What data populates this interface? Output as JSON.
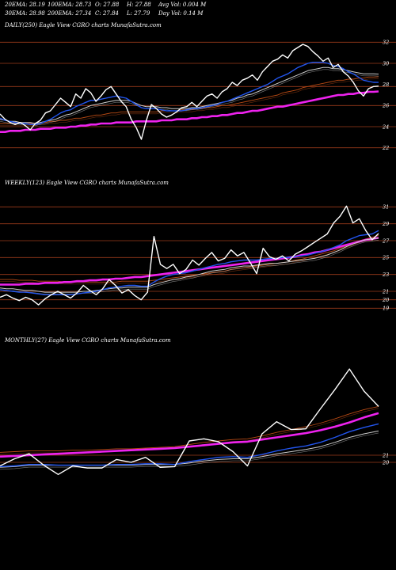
{
  "header": {
    "stats": [
      "20EMA: 28.19",
      "100EMA: 28.73",
      "O: 27.88",
      "H: 27.88",
      "Avg Vol: 0.004 M",
      "30EMA: 28.98",
      "200EMA: 27.34",
      "C: 27.84",
      "L: 27.79",
      "Day Vol: 0.14  M"
    ]
  },
  "colors": {
    "background": "#000000",
    "price": "#ffffff",
    "ema20": "#2255ee",
    "ema30": "#cccccc",
    "ema100": "#b84a14",
    "ema200": "#ee22ee",
    "grid_line": "#9a3a1a"
  },
  "chart_data": [
    {
      "type": "line",
      "title": "DAILY(250) Eagle  View  CGRO charts MunafaSutra.com",
      "ylim": [
        21,
        33
      ],
      "yticks": [
        32,
        30,
        28,
        26,
        24,
        22
      ],
      "hlines": [
        32,
        30,
        27.8,
        26,
        24,
        22
      ],
      "series": [
        {
          "key": "price",
          "values": [
            25.2,
            24.7,
            24.4,
            24.2,
            24.4,
            24.1,
            23.7,
            24.3,
            24.6,
            25.3,
            25.5,
            26.1,
            26.7,
            26.3,
            25.9,
            27.1,
            26.7,
            27.6,
            27.2,
            26.4,
            26.9,
            27.5,
            27.8,
            27.1,
            26.4,
            25.9,
            24.7,
            23.9,
            22.8,
            24.6,
            26.1,
            25.7,
            25.2,
            24.9,
            25.1,
            25.4,
            25.8,
            25.9,
            26.3,
            25.9,
            26.4,
            26.9,
            27.1,
            26.7,
            27.3,
            27.6,
            28.2,
            27.9,
            28.4,
            28.6,
            28.9,
            28.4,
            29.2,
            29.7,
            30.2,
            30.4,
            30.8,
            30.5,
            31.2,
            31.5,
            31.8,
            31.6,
            31.1,
            30.7,
            30.2,
            30.5,
            29.6,
            29.9,
            29.2,
            28.8,
            28.2,
            27.4,
            26.9,
            27.6,
            27.8,
            27.84
          ]
        },
        {
          "key": "ema20",
          "values": [
            24.8,
            24.6,
            24.5,
            24.4,
            24.3,
            24.3,
            24.2,
            24.2,
            24.3,
            24.5,
            24.7,
            25.0,
            25.3,
            25.5,
            25.6,
            25.9,
            26.1,
            26.3,
            26.5,
            26.5,
            26.6,
            26.7,
            26.8,
            26.9,
            26.8,
            26.7,
            26.4,
            26.1,
            25.8,
            25.7,
            25.7,
            25.7,
            25.6,
            25.5,
            25.5,
            25.5,
            25.5,
            25.6,
            25.7,
            25.7,
            25.8,
            25.9,
            26.0,
            26.1,
            26.3,
            26.4,
            26.6,
            26.8,
            27.0,
            27.2,
            27.4,
            27.6,
            27.8,
            28.0,
            28.3,
            28.6,
            28.8,
            29.0,
            29.3,
            29.6,
            29.8,
            30.0,
            30.1,
            30.1,
            30.1,
            30.0,
            29.8,
            29.7,
            29.5,
            29.2,
            29.0,
            28.7,
            28.4,
            28.3,
            28.2,
            28.19
          ]
        },
        {
          "key": "ema30",
          "values": [
            24.7,
            24.6,
            24.5,
            24.5,
            24.4,
            24.4,
            24.4,
            24.3,
            24.4,
            24.5,
            24.6,
            24.7,
            24.9,
            25.1,
            25.2,
            25.4,
            25.6,
            25.8,
            26.0,
            26.1,
            26.2,
            26.3,
            26.4,
            26.5,
            26.5,
            26.5,
            26.4,
            26.2,
            26.0,
            25.9,
            25.9,
            25.9,
            25.8,
            25.8,
            25.7,
            25.7,
            25.7,
            25.7,
            25.8,
            25.8,
            25.9,
            26.0,
            26.1,
            26.2,
            26.3,
            26.4,
            26.5,
            26.7,
            26.8,
            27.0,
            27.1,
            27.3,
            27.5,
            27.7,
            27.9,
            28.1,
            28.3,
            28.5,
            28.7,
            28.9,
            29.1,
            29.3,
            29.4,
            29.5,
            29.6,
            29.6,
            29.5,
            29.5,
            29.4,
            29.3,
            29.2,
            29.1,
            29.0,
            29.0,
            29.0,
            28.98
          ]
        },
        {
          "key": "ema100",
          "values": [
            24.3,
            24.3,
            24.3,
            24.3,
            24.3,
            24.3,
            24.3,
            24.3,
            24.4,
            24.4,
            24.5,
            24.5,
            24.6,
            24.6,
            24.7,
            24.8,
            24.8,
            24.9,
            25.0,
            25.1,
            25.1,
            25.2,
            25.3,
            25.3,
            25.4,
            25.4,
            25.4,
            25.4,
            25.4,
            25.4,
            25.4,
            25.4,
            25.5,
            25.5,
            25.5,
            25.5,
            25.6,
            25.6,
            25.6,
            25.7,
            25.7,
            25.8,
            25.8,
            25.9,
            26.0,
            26.0,
            26.1,
            26.2,
            26.3,
            26.4,
            26.5,
            26.6,
            26.7,
            26.8,
            26.9,
            27.0,
            27.2,
            27.3,
            27.4,
            27.5,
            27.7,
            27.8,
            27.9,
            28.0,
            28.1,
            28.2,
            28.3,
            28.4,
            28.4,
            28.5,
            28.5,
            28.6,
            28.6,
            28.7,
            28.7,
            28.73
          ]
        },
        {
          "key": "ema200",
          "values": [
            23.5,
            23.5,
            23.6,
            23.6,
            23.6,
            23.7,
            23.7,
            23.7,
            23.8,
            23.8,
            23.8,
            23.9,
            23.9,
            23.9,
            24.0,
            24.0,
            24.1,
            24.1,
            24.2,
            24.2,
            24.3,
            24.3,
            24.3,
            24.4,
            24.4,
            24.4,
            24.4,
            24.5,
            24.5,
            24.5,
            24.5,
            24.5,
            24.6,
            24.6,
            24.6,
            24.7,
            24.7,
            24.7,
            24.8,
            24.8,
            24.9,
            24.9,
            25.0,
            25.0,
            25.1,
            25.1,
            25.2,
            25.3,
            25.3,
            25.4,
            25.5,
            25.5,
            25.6,
            25.7,
            25.8,
            25.9,
            25.9,
            26.0,
            26.1,
            26.2,
            26.3,
            26.4,
            26.5,
            26.6,
            26.7,
            26.8,
            26.9,
            27.0,
            27.0,
            27.1,
            27.1,
            27.2,
            27.2,
            27.3,
            27.3,
            27.34
          ]
        }
      ]
    },
    {
      "type": "line",
      "title": "WEEKLY(123) Eagle  View  CGRO charts MunafaSutra.com",
      "ylim": [
        18,
        33
      ],
      "yticks": [
        31,
        29,
        27,
        25,
        23,
        21,
        20,
        19
      ],
      "hlines": [
        31,
        29,
        27,
        25,
        23,
        21,
        20,
        19
      ],
      "series": [
        {
          "key": "price",
          "values": [
            20.3,
            20.6,
            20.2,
            19.9,
            20.3,
            20.0,
            19.4,
            20.1,
            20.6,
            21.0,
            20.6,
            20.2,
            20.8,
            21.7,
            21.1,
            20.6,
            21.3,
            22.4,
            21.7,
            20.8,
            21.2,
            20.5,
            20.0,
            20.9,
            27.5,
            24.2,
            23.7,
            24.2,
            23.1,
            23.6,
            24.7,
            24.1,
            24.9,
            25.6,
            24.6,
            24.9,
            25.9,
            25.2,
            25.6,
            24.4,
            23.1,
            26.1,
            25.1,
            24.8,
            25.2,
            24.6,
            25.4,
            25.8,
            26.3,
            26.8,
            27.3,
            27.8,
            29.1,
            29.9,
            31.1,
            29.1,
            29.6,
            28.2,
            27.1,
            27.84
          ]
        },
        {
          "key": "ema20",
          "values": [
            21.2,
            21.1,
            21.0,
            20.9,
            20.9,
            20.8,
            20.7,
            20.6,
            20.6,
            20.6,
            20.6,
            20.6,
            20.7,
            20.8,
            20.9,
            21.0,
            21.2,
            21.4,
            21.5,
            21.6,
            21.7,
            21.7,
            21.6,
            21.6,
            22.1,
            22.5,
            22.8,
            23.0,
            23.1,
            23.2,
            23.4,
            23.6,
            23.8,
            24.0,
            24.2,
            24.3,
            24.5,
            24.6,
            24.7,
            24.7,
            24.7,
            24.8,
            24.9,
            24.9,
            25.0,
            25.0,
            25.1,
            25.2,
            25.3,
            25.5,
            25.7,
            25.9,
            26.2,
            26.5,
            27.0,
            27.3,
            27.6,
            27.7,
            27.8,
            28.19
          ]
        },
        {
          "key": "ema30",
          "values": [
            21.4,
            21.3,
            21.3,
            21.2,
            21.1,
            21.1,
            21.0,
            20.9,
            20.9,
            20.9,
            20.9,
            20.9,
            20.9,
            21.0,
            21.0,
            21.1,
            21.2,
            21.3,
            21.4,
            21.4,
            21.5,
            21.5,
            21.5,
            21.5,
            21.8,
            22.0,
            22.2,
            22.4,
            22.5,
            22.7,
            22.8,
            23.0,
            23.2,
            23.4,
            23.5,
            23.6,
            23.8,
            23.9,
            24.0,
            24.0,
            24.1,
            24.2,
            24.3,
            24.3,
            24.4,
            24.5,
            24.6,
            24.7,
            24.8,
            24.9,
            25.1,
            25.3,
            25.6,
            25.9,
            26.3,
            26.6,
            26.9,
            27.1,
            27.2,
            27.3
          ]
        },
        {
          "key": "ema100",
          "values": [
            22.4,
            22.4,
            22.4,
            22.3,
            22.3,
            22.3,
            22.2,
            22.2,
            22.2,
            22.2,
            22.1,
            22.1,
            22.1,
            22.1,
            22.1,
            22.1,
            22.1,
            22.1,
            22.1,
            22.2,
            22.2,
            22.2,
            22.2,
            22.2,
            22.3,
            22.4,
            22.5,
            22.6,
            22.7,
            22.8,
            22.9,
            23.0,
            23.1,
            23.2,
            23.3,
            23.4,
            23.6,
            23.7,
            23.8,
            23.9,
            24.0,
            24.1,
            24.2,
            24.3,
            24.4,
            24.5,
            24.7,
            24.8,
            25.0,
            25.2,
            25.4,
            25.6,
            25.8,
            26.1,
            26.4,
            26.7,
            27.0,
            27.2,
            27.4,
            27.6
          ]
        },
        {
          "key": "ema200",
          "values": [
            21.8,
            21.8,
            21.8,
            21.8,
            21.9,
            21.9,
            21.9,
            22.0,
            22.0,
            22.0,
            22.1,
            22.1,
            22.2,
            22.2,
            22.3,
            22.3,
            22.4,
            22.4,
            22.5,
            22.5,
            22.6,
            22.7,
            22.7,
            22.8,
            22.9,
            23.0,
            23.1,
            23.2,
            23.3,
            23.4,
            23.5,
            23.6,
            23.7,
            23.8,
            23.9,
            24.0,
            24.1,
            24.2,
            24.3,
            24.4,
            24.5,
            24.6,
            24.7,
            24.8,
            24.9,
            25.0,
            25.1,
            25.3,
            25.4,
            25.6,
            25.7,
            25.9,
            26.1,
            26.3,
            26.5,
            26.7,
            26.9,
            27.1,
            27.2,
            27.34
          ]
        }
      ]
    },
    {
      "type": "line",
      "title": "MONTHLY(27) Eagle  View  CGRO charts MunafaSutra.com",
      "ylim": [
        16,
        36
      ],
      "yticks": [
        21,
        20
      ],
      "hlines": [
        21,
        20
      ],
      "series": [
        {
          "key": "price",
          "values": [
            19.5,
            20.5,
            21.2,
            19.6,
            18.3,
            19.5,
            19.2,
            19.2,
            20.4,
            20.0,
            20.7,
            19.3,
            19.4,
            23.0,
            23.3,
            22.9,
            21.5,
            19.5,
            24.0,
            25.7,
            24.6,
            24.7,
            27.5,
            30.2,
            33.1,
            30.0,
            27.84
          ]
        },
        {
          "key": "ema20",
          "values": [
            19.4,
            19.5,
            19.7,
            19.7,
            19.6,
            19.6,
            19.6,
            19.6,
            19.7,
            19.7,
            19.8,
            19.8,
            19.7,
            20.1,
            20.4,
            20.7,
            20.8,
            20.7,
            21.1,
            21.6,
            22.0,
            22.3,
            22.8,
            23.5,
            24.3,
            24.9,
            25.4
          ]
        },
        {
          "key": "ema30",
          "values": [
            19.3,
            19.4,
            19.6,
            19.6,
            19.6,
            19.6,
            19.6,
            19.6,
            19.6,
            19.6,
            19.7,
            19.7,
            19.7,
            19.9,
            20.2,
            20.4,
            20.5,
            20.5,
            20.8,
            21.2,
            21.5,
            21.8,
            22.2,
            22.8,
            23.5,
            24.0,
            24.4
          ]
        },
        {
          "key": "ema100",
          "values": [
            21.4,
            21.5,
            21.6,
            21.6,
            21.6,
            21.7,
            21.7,
            21.8,
            21.9,
            21.9,
            22.0,
            22.1,
            22.2,
            22.5,
            22.8,
            23.0,
            23.2,
            23.3,
            23.7,
            24.2,
            24.6,
            25.0,
            25.5,
            26.1,
            26.8,
            27.4,
            27.84
          ]
        },
        {
          "key": "ema200",
          "values": [
            20.8,
            20.9,
            21.0,
            21.1,
            21.2,
            21.3,
            21.4,
            21.5,
            21.6,
            21.7,
            21.8,
            21.9,
            22.0,
            22.2,
            22.4,
            22.6,
            22.8,
            22.9,
            23.2,
            23.5,
            23.8,
            24.1,
            24.5,
            25.0,
            25.6,
            26.3,
            26.9
          ]
        }
      ]
    }
  ]
}
